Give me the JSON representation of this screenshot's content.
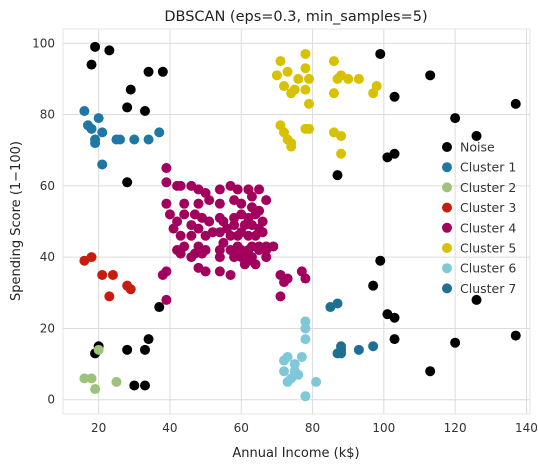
{
  "chart_data": {
    "type": "scatter",
    "title": "DBSCAN (eps=0.3, min_samples=5)",
    "xlabel": "Annual Income (k$)",
    "ylabel": "Spending Score (1−100)",
    "xlim": [
      10,
      141
    ],
    "ylim": [
      -4,
      104
    ],
    "xticks": [
      20,
      40,
      60,
      80,
      100,
      120,
      140
    ],
    "yticks": [
      0,
      20,
      40,
      60,
      80,
      100
    ],
    "grid": true,
    "legend_position": "right",
    "series": [
      {
        "name": "Noise",
        "color": "#000000",
        "points": [
          [
            19,
            99
          ],
          [
            23,
            98
          ],
          [
            18,
            94
          ],
          [
            29,
            87
          ],
          [
            34,
            92
          ],
          [
            38,
            92
          ],
          [
            28,
            82
          ],
          [
            33,
            81
          ],
          [
            28,
            61
          ],
          [
            99,
            97
          ],
          [
            113,
            91
          ],
          [
            103,
            85
          ],
          [
            120,
            79
          ],
          [
            137,
            83
          ],
          [
            126,
            74
          ],
          [
            101,
            68
          ],
          [
            103,
            69
          ],
          [
            87,
            63
          ],
          [
            99,
            39
          ],
          [
            97,
            32
          ],
          [
            126,
            28
          ],
          [
            101,
            24
          ],
          [
            103,
            23
          ],
          [
            103,
            17
          ],
          [
            120,
            16
          ],
          [
            137,
            18
          ],
          [
            113,
            8
          ],
          [
            37,
            26
          ],
          [
            34,
            17
          ],
          [
            20,
            15
          ],
          [
            19,
            13
          ],
          [
            28,
            14
          ],
          [
            33,
            14
          ],
          [
            30,
            4
          ],
          [
            33,
            4
          ]
        ]
      },
      {
        "name": "Cluster 1",
        "color": "#1f77a4",
        "points": [
          [
            16,
            81
          ],
          [
            17,
            77
          ],
          [
            18,
            76
          ],
          [
            20,
            79
          ],
          [
            19,
            73
          ],
          [
            21,
            75
          ],
          [
            19,
            72
          ],
          [
            25,
            73
          ],
          [
            26,
            73
          ],
          [
            30,
            73
          ],
          [
            34,
            73
          ],
          [
            37,
            75
          ],
          [
            21,
            66
          ]
        ]
      },
      {
        "name": "Cluster 2",
        "color": "#9dc27a",
        "points": [
          [
            16,
            6
          ],
          [
            18,
            6
          ],
          [
            19,
            3
          ],
          [
            25,
            5
          ],
          [
            20,
            14
          ]
        ]
      },
      {
        "name": "Cluster 3",
        "color": "#c81d0e",
        "points": [
          [
            16,
            39
          ],
          [
            18,
            40
          ],
          [
            21,
            35
          ],
          [
            24,
            35
          ],
          [
            23,
            29
          ],
          [
            28,
            32
          ],
          [
            29,
            31
          ]
        ]
      },
      {
        "name": "Cluster 4",
        "color": "#a1005c",
        "points": [
          [
            39,
            65
          ],
          [
            39,
            61
          ],
          [
            39,
            55
          ],
          [
            42,
            60
          ],
          [
            43,
            60
          ],
          [
            44,
            55
          ],
          [
            46,
            60
          ],
          [
            48,
            59
          ],
          [
            48,
            55
          ],
          [
            50,
            58
          ],
          [
            51,
            56
          ],
          [
            54,
            59
          ],
          [
            54,
            55
          ],
          [
            57,
            60
          ],
          [
            58,
            56
          ],
          [
            59,
            59
          ],
          [
            60,
            55
          ],
          [
            62,
            59
          ],
          [
            63,
            57
          ],
          [
            65,
            59
          ],
          [
            67,
            56
          ],
          [
            40,
            52
          ],
          [
            41,
            48
          ],
          [
            42,
            50
          ],
          [
            43,
            46
          ],
          [
            44,
            52
          ],
          [
            46,
            49
          ],
          [
            46,
            46
          ],
          [
            47,
            52
          ],
          [
            48,
            48
          ],
          [
            48,
            43
          ],
          [
            49,
            51
          ],
          [
            50,
            46
          ],
          [
            50,
            42
          ],
          [
            51,
            50
          ],
          [
            52,
            47
          ],
          [
            54,
            51
          ],
          [
            54,
            47
          ],
          [
            54,
            42
          ],
          [
            55,
            50
          ],
          [
            55,
            44
          ],
          [
            56,
            48
          ],
          [
            57,
            46
          ],
          [
            57,
            42
          ],
          [
            58,
            51
          ],
          [
            58,
            49
          ],
          [
            59,
            46
          ],
          [
            59,
            43
          ],
          [
            60,
            52
          ],
          [
            60,
            47
          ],
          [
            60,
            42
          ],
          [
            61,
            49
          ],
          [
            61,
            41
          ],
          [
            62,
            51
          ],
          [
            62,
            46
          ],
          [
            62,
            42
          ],
          [
            63,
            54
          ],
          [
            63,
            49
          ],
          [
            63,
            43
          ],
          [
            64,
            52
          ],
          [
            64,
            46
          ],
          [
            65,
            53
          ],
          [
            65,
            48
          ],
          [
            65,
            43
          ],
          [
            66,
            50
          ],
          [
            66,
            47
          ],
          [
            67,
            43
          ],
          [
            67,
            40
          ],
          [
            42,
            42
          ],
          [
            43,
            41
          ],
          [
            44,
            43
          ],
          [
            46,
            40
          ],
          [
            47,
            41
          ],
          [
            48,
            37
          ],
          [
            49,
            41
          ],
          [
            50,
            36
          ],
          [
            54,
            40
          ],
          [
            54,
            36
          ],
          [
            57,
            35
          ],
          [
            58,
            40
          ],
          [
            59,
            41
          ],
          [
            60,
            40
          ],
          [
            61,
            38
          ],
          [
            62,
            39
          ],
          [
            63,
            40
          ],
          [
            64,
            38
          ],
          [
            65,
            42
          ],
          [
            67,
            42
          ],
          [
            69,
            43
          ],
          [
            38,
            35
          ],
          [
            39,
            36
          ],
          [
            39,
            28
          ],
          [
            71,
            35
          ],
          [
            72,
            33
          ],
          [
            77,
            36
          ],
          [
            78,
            34
          ],
          [
            71,
            29
          ],
          [
            73,
            34
          ]
        ]
      },
      {
        "name": "Cluster 5",
        "color": "#d8c100",
        "points": [
          [
            71,
            95
          ],
          [
            78,
            97
          ],
          [
            70,
            91
          ],
          [
            73,
            92
          ],
          [
            76,
            90
          ],
          [
            78,
            93
          ],
          [
            79,
            90
          ],
          [
            86,
            95
          ],
          [
            88,
            91
          ],
          [
            90,
            90
          ],
          [
            93,
            90
          ],
          [
            72,
            88
          ],
          [
            74,
            86
          ],
          [
            75,
            87
          ],
          [
            78,
            87
          ],
          [
            79,
            83
          ],
          [
            86,
            86
          ],
          [
            87,
            90
          ],
          [
            98,
            88
          ],
          [
            97,
            86
          ],
          [
            71,
            77
          ],
          [
            72,
            75
          ],
          [
            73,
            73
          ],
          [
            74,
            72
          ],
          [
            74,
            71
          ],
          [
            78,
            76
          ],
          [
            79,
            76
          ],
          [
            86,
            75
          ],
          [
            88,
            74
          ],
          [
            88,
            69
          ]
        ]
      },
      {
        "name": "Cluster 6",
        "color": "#7fc8d8",
        "points": [
          [
            78,
            22
          ],
          [
            78,
            20
          ],
          [
            78,
            17
          ],
          [
            73,
            12
          ],
          [
            72,
            11
          ],
          [
            72,
            8
          ],
          [
            73,
            5
          ],
          [
            74,
            6
          ],
          [
            75,
            8
          ],
          [
            76,
            7
          ],
          [
            78,
            1
          ],
          [
            81,
            5
          ],
          [
            77,
            12
          ],
          [
            75,
            10
          ]
        ]
      },
      {
        "name": "Cluster 7",
        "color": "#1f6f93",
        "points": [
          [
            85,
            26
          ],
          [
            87,
            27
          ],
          [
            87,
            13
          ],
          [
            88,
            13
          ],
          [
            88,
            14
          ],
          [
            88,
            15
          ],
          [
            93,
            14
          ],
          [
            97,
            15
          ]
        ]
      }
    ]
  }
}
